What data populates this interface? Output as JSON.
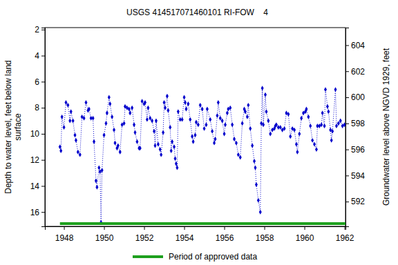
{
  "chart_data": {
    "type": "line",
    "title": "USGS 414517071460101 RI-FOW    4",
    "ylabel": [
      "Depth to water level, feet below land",
      "surface"
    ],
    "y2label": "Groundwater level above NGVD 1929, feet",
    "xlim": [
      1947.05,
      1962.05
    ],
    "xticks": [
      1948,
      1950,
      1952,
      1954,
      1956,
      1958,
      1960,
      1962
    ],
    "ylim": [
      1.85,
      17.1
    ],
    "yticks": [
      2,
      4,
      6,
      8,
      10,
      12,
      14,
      16
    ],
    "y2lim": [
      605.35,
      590.1
    ],
    "y2ticks": [
      592,
      594,
      596,
      598,
      600,
      602,
      604
    ],
    "grid": false,
    "series": [
      {
        "color": "#0000cc",
        "marker": "diamond",
        "line_style": "dotted",
        "x": [
          1947.8,
          1947.85,
          1947.9,
          1948.0,
          1948.1,
          1948.2,
          1948.3,
          1948.35,
          1948.45,
          1948.55,
          1948.6,
          1948.7,
          1948.8,
          1948.9,
          1949.0,
          1949.1,
          1949.2,
          1949.25,
          1949.35,
          1949.45,
          1949.5,
          1949.6,
          1949.65,
          1949.75,
          1949.8,
          1949.85,
          1949.9,
          1950.0,
          1950.1,
          1950.15,
          1950.25,
          1950.3,
          1950.4,
          1950.5,
          1950.55,
          1950.65,
          1950.7,
          1950.8,
          1950.9,
          1951.0,
          1951.05,
          1951.15,
          1951.25,
          1951.3,
          1951.4,
          1951.5,
          1951.55,
          1951.65,
          1951.75,
          1951.8,
          1951.9,
          1952.0,
          1952.05,
          1952.15,
          1952.2,
          1952.3,
          1952.4,
          1952.5,
          1952.55,
          1952.6,
          1952.7,
          1952.8,
          1952.85,
          1952.95,
          1953.0,
          1953.05,
          1953.15,
          1953.2,
          1953.3,
          1953.35,
          1953.4,
          1953.5,
          1953.55,
          1953.6,
          1953.65,
          1953.7,
          1953.8,
          1953.9,
          1954.0,
          1954.05,
          1954.1,
          1954.2,
          1954.3,
          1954.4,
          1954.45,
          1954.55,
          1954.6,
          1954.7,
          1954.8,
          1954.9,
          1955.0,
          1955.1,
          1955.15,
          1955.3,
          1955.4,
          1955.5,
          1955.55,
          1955.65,
          1955.7,
          1955.8,
          1955.9,
          1956.0,
          1956.05,
          1956.15,
          1956.2,
          1956.3,
          1956.4,
          1956.5,
          1956.6,
          1956.7,
          1956.8,
          1956.9,
          1957.0,
          1957.05,
          1957.15,
          1957.2,
          1957.3,
          1957.4,
          1957.5,
          1957.55,
          1957.6,
          1957.7,
          1957.8,
          1957.85,
          1957.9,
          1957.95,
          1958.05,
          1958.1,
          1958.2,
          1958.3,
          1958.4,
          1958.5,
          1958.55,
          1958.6,
          1958.7,
          1958.8,
          1958.9,
          1959.0,
          1959.1,
          1959.2,
          1959.3,
          1959.4,
          1959.5,
          1959.6,
          1959.65,
          1959.75,
          1959.85,
          1959.95,
          1960.05,
          1960.1,
          1960.2,
          1960.3,
          1960.4,
          1960.5,
          1960.6,
          1960.65,
          1960.75,
          1960.85,
          1960.9,
          1961.0,
          1961.05,
          1961.15,
          1961.2,
          1961.3,
          1961.35,
          1961.4,
          1961.55,
          1961.6,
          1961.7,
          1961.8,
          1961.9,
          1962.0
        ],
        "values": [
          11.0,
          11.3,
          8.7,
          9.5,
          7.6,
          7.8,
          9.0,
          8.3,
          9.0,
          10.1,
          10.5,
          11.4,
          11.6,
          8.7,
          8.8,
          7.6,
          8.2,
          8.1,
          8.8,
          8.8,
          10.6,
          13.6,
          14.1,
          12.6,
          12.9,
          16.8,
          12.8,
          10.1,
          9.2,
          8.4,
          7.2,
          7.7,
          8.7,
          9.7,
          10.7,
          11.1,
          10.9,
          11.4,
          9.3,
          9.2,
          7.9,
          8.0,
          8.1,
          8.4,
          8.0,
          9.3,
          9.9,
          10.6,
          11.1,
          11.1,
          7.5,
          7.7,
          7.6,
          8.9,
          8.0,
          8.8,
          9.0,
          9.8,
          10.9,
          9.0,
          10.8,
          11.2,
          11.6,
          9.9,
          7.6,
          8.0,
          7.1,
          8.2,
          9.5,
          11.3,
          10.6,
          11.0,
          11.9,
          12.3,
          12.6,
          8.3,
          8.9,
          8.9,
          7.2,
          7.6,
          8.1,
          7.7,
          8.9,
          10.2,
          10.6,
          10.1,
          9.1,
          9.3,
          7.8,
          8.1,
          9.6,
          9.3,
          8.1,
          8.9,
          9.8,
          10.7,
          10.4,
          8.6,
          7.6,
          8.8,
          9.0,
          10.0,
          9.3,
          8.4,
          8.1,
          8.0,
          9.3,
          10.4,
          10.7,
          11.6,
          11.8,
          9.2,
          8.1,
          8.3,
          8.7,
          7.8,
          9.6,
          10.9,
          12.1,
          12.6,
          13.9,
          15.1,
          16.0,
          9.2,
          6.5,
          9.3,
          7.0,
          8.3,
          9.0,
          10.0,
          9.7,
          9.6,
          9.4,
          9.3,
          9.5,
          9.5,
          9.7,
          9.6,
          8.4,
          8.5,
          10.2,
          9.6,
          9.7,
          10.8,
          11.4,
          10.0,
          8.8,
          8.4,
          8.3,
          8.1,
          8.7,
          9.4,
          10.5,
          10.8,
          11.2,
          9.4,
          9.4,
          9.3,
          8.4,
          9.4,
          6.6,
          7.9,
          8.3,
          9.7,
          10.5,
          9.8,
          6.6,
          9.4,
          9.2,
          9.0,
          9.4,
          9.3
        ]
      },
      {
        "name": "Period of approved data",
        "type": "period",
        "color": "#1ea01e",
        "x": [
          1947.8,
          1962.05
        ]
      }
    ]
  }
}
